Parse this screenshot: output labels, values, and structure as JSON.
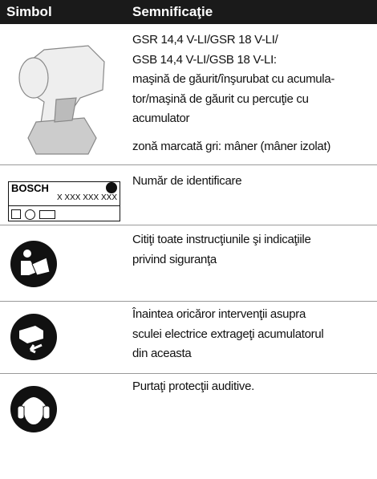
{
  "header": {
    "symbol": "Simbol",
    "meaning": "Semnificaţie"
  },
  "rows": [
    {
      "lines": [
        "GSR 14,4 V-LI/GSR 18 V-LI/",
        "GSB 14,4 V-LI/GSB 18 V-LI:",
        "maşină de găurit/înşurubat cu acumula-",
        "tor/maşină de găurit cu percuţie cu",
        "acumulator"
      ],
      "note": "zonă marcată gri: mâner (mâner izolat)"
    },
    {
      "plate": {
        "brand": "BOSCH",
        "number": "X XXX XXX XXX"
      },
      "lines": [
        "Număr de identificare"
      ]
    },
    {
      "lines": [
        "Citiţi toate instrucţiunile şi indicaţiile",
        "privind siguranţa"
      ]
    },
    {
      "lines": [
        "Înaintea oricăror intervenţii asupra",
        "sculei electrice extrageţi acumulatorul",
        "din aceasta"
      ]
    },
    {
      "lines": [
        "Purtaţi protecţii auditive."
      ]
    }
  ]
}
